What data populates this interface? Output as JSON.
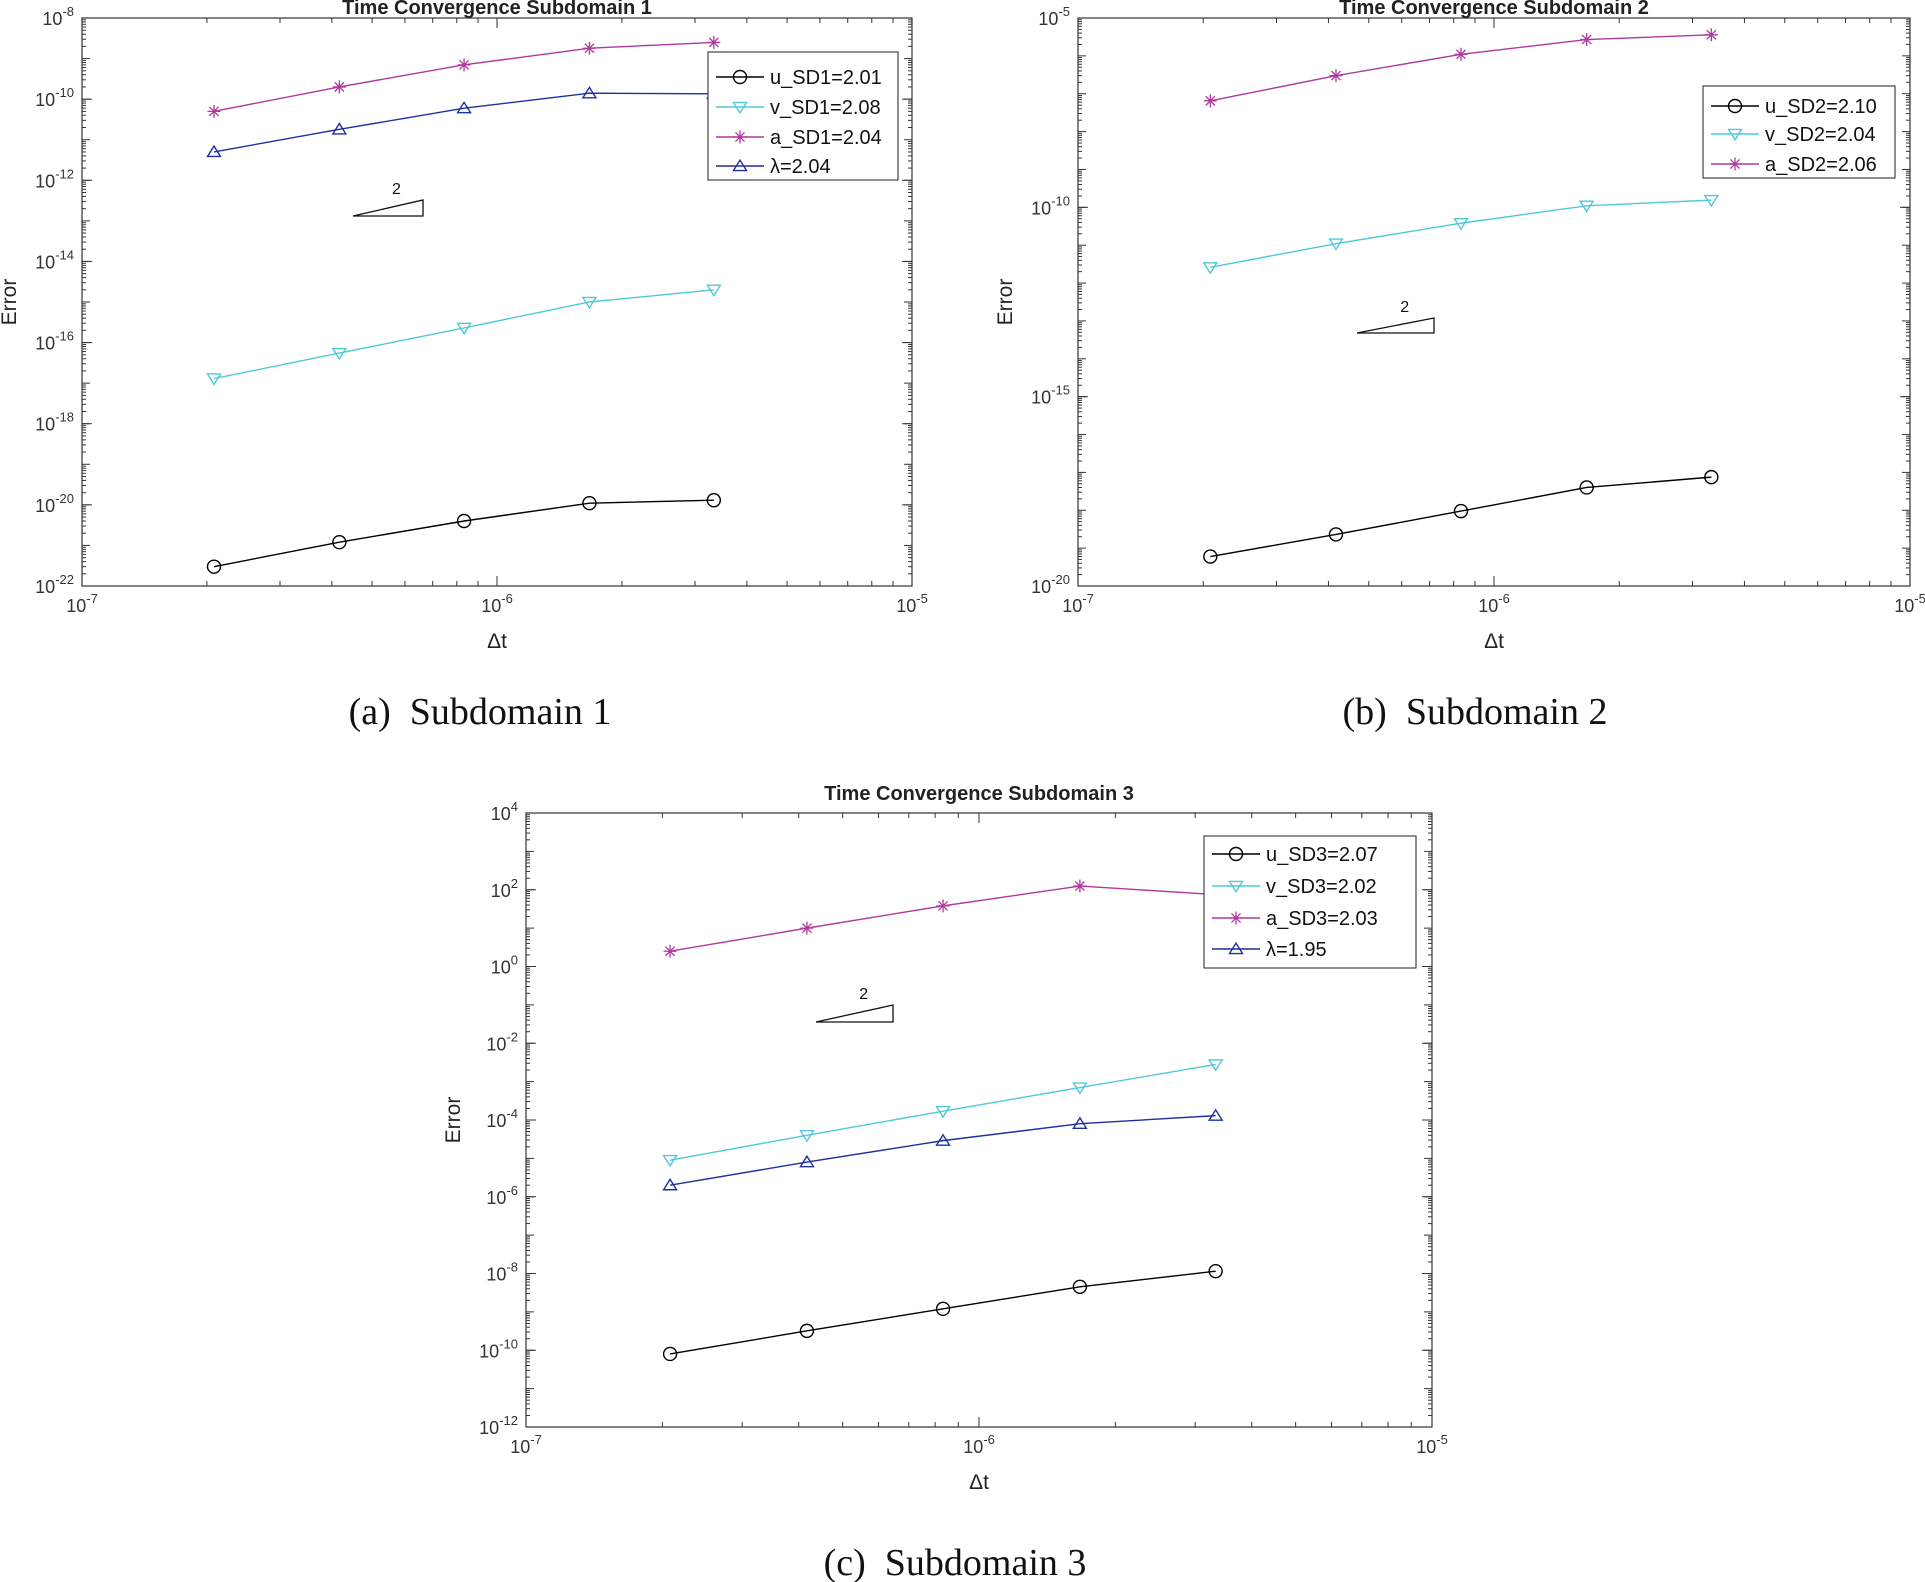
{
  "chart_data": [
    {
      "id": "sd1",
      "type": "line",
      "scale": "loglog",
      "title": "Time Convergence Subdomain 1",
      "xlabel": "Δt",
      "ylabel": "Error",
      "xlim_exp": [
        -7,
        -5
      ],
      "ylim_exp": [
        -22,
        -8
      ],
      "x_ticks": [
        {
          "base": "10",
          "exp": "-7"
        },
        {
          "base": "10",
          "exp": "-6"
        },
        {
          "base": "10",
          "exp": "-5"
        }
      ],
      "y_ticks": [
        {
          "base": "10",
          "exp": "-22"
        },
        {
          "base": "10",
          "exp": "-20"
        },
        {
          "base": "10",
          "exp": "-18"
        },
        {
          "base": "10",
          "exp": "-16"
        },
        {
          "base": "10",
          "exp": "-14"
        },
        {
          "base": "10",
          "exp": "-12"
        },
        {
          "base": "10",
          "exp": "-10"
        },
        {
          "base": "10",
          "exp": "-8"
        }
      ],
      "x": [
        2.08e-07,
        4.17e-07,
        8.33e-07,
        1.67e-06,
        3.33e-06
      ],
      "series": [
        {
          "name": "u_SD1=2.01",
          "color": "#000000",
          "marker": "circle",
          "values": [
            3e-22,
            1.2e-21,
            4e-21,
            1.1e-20,
            1.3e-20
          ]
        },
        {
          "name": "v_SD1=2.08",
          "color": "#4ec9d8",
          "marker": "triangle-down",
          "values": [
            1.3e-17,
            5.5e-17,
            2.3e-16,
            1e-15,
            2e-15
          ]
        },
        {
          "name": "a_SD1=2.04",
          "color": "#b0399f",
          "marker": "asterisk",
          "values": [
            5e-11,
            2e-10,
            7e-10,
            1.8e-09,
            2.5e-09
          ]
        },
        {
          "name": "λ=2.04",
          "color": "#1f2f9e",
          "marker": "triangle-up",
          "values": [
            5e-12,
            1.8e-11,
            6e-11,
            1.4e-10,
            1.35e-10
          ]
        }
      ],
      "slope_label": "2",
      "caption": "(a) Subdomain 1"
    },
    {
      "id": "sd2",
      "type": "line",
      "scale": "loglog",
      "title": "Time Convergence Subdomain 2",
      "xlabel": "Δt",
      "ylabel": "Error",
      "xlim_exp": [
        -7,
        -5
      ],
      "ylim_exp": [
        -20,
        -5
      ],
      "x_ticks": [
        {
          "base": "10",
          "exp": "-7"
        },
        {
          "base": "10",
          "exp": "-6"
        },
        {
          "base": "10",
          "exp": "-5"
        }
      ],
      "y_ticks": [
        {
          "base": "10",
          "exp": "-20"
        },
        {
          "base": "10",
          "exp": "-15"
        },
        {
          "base": "10",
          "exp": "-10"
        },
        {
          "base": "10",
          "exp": "-5"
        }
      ],
      "x": [
        2.08e-07,
        4.17e-07,
        8.33e-07,
        1.67e-06,
        3.33e-06
      ],
      "series": [
        {
          "name": "u_SD2=2.10",
          "color": "#000000",
          "marker": "circle",
          "values": [
            6e-20,
            2.3e-19,
            9.5e-19,
            4e-18,
            7.5e-18
          ]
        },
        {
          "name": "v_SD2=2.04",
          "color": "#4ec9d8",
          "marker": "triangle-down",
          "values": [
            2.6e-12,
            1.1e-11,
            3.8e-11,
            1.1e-10,
            1.55e-10
          ]
        },
        {
          "name": "a_SD2=2.06",
          "color": "#b0399f",
          "marker": "asterisk",
          "values": [
            6.5e-08,
            3e-07,
            1.1e-06,
            2.7e-06,
            3.6e-06
          ]
        }
      ],
      "slope_label": "2",
      "caption": "(b) Subdomain 2"
    },
    {
      "id": "sd3",
      "type": "line",
      "scale": "loglog",
      "title": "Time Convergence Subdomain 3",
      "xlabel": "Δt",
      "ylabel": "Error",
      "xlim_exp": [
        -7,
        -5
      ],
      "ylim_exp": [
        -12,
        4
      ],
      "x_ticks": [
        {
          "base": "10",
          "exp": "-7"
        },
        {
          "base": "10",
          "exp": "-6"
        },
        {
          "base": "10",
          "exp": "-5"
        }
      ],
      "y_ticks": [
        {
          "base": "10",
          "exp": "-12"
        },
        {
          "base": "10",
          "exp": "-10"
        },
        {
          "base": "10",
          "exp": "-8"
        },
        {
          "base": "10",
          "exp": "-6"
        },
        {
          "base": "10",
          "exp": "-4"
        },
        {
          "base": "10",
          "exp": "-2"
        },
        {
          "base": "10",
          "exp": "0"
        },
        {
          "base": "10",
          "exp": "2"
        },
        {
          "base": "10",
          "exp": "4"
        }
      ],
      "x": [
        2.08e-07,
        4.17e-07,
        8.33e-07,
        1.67e-06,
        3.33e-06
      ],
      "series": [
        {
          "name": "u_SD3=2.07",
          "color": "#000000",
          "marker": "circle",
          "values": [
            8e-11,
            3.2e-10,
            1.2e-09,
            4.5e-09,
            1.15e-08
          ]
        },
        {
          "name": "v_SD3=2.02",
          "color": "#4ec9d8",
          "marker": "triangle-down",
          "values": [
            9e-06,
            4e-05,
            0.00017,
            0.0007,
            0.0028
          ]
        },
        {
          "name": "a_SD3=2.03",
          "color": "#b0399f",
          "marker": "asterisk",
          "values": [
            2.5,
            10,
            38,
            125,
            75
          ]
        },
        {
          "name": "λ=1.95",
          "color": "#1f2f9e",
          "marker": "triangle-up",
          "values": [
            2e-06,
            8e-06,
            2.9e-05,
            8e-05,
            0.00013
          ]
        }
      ],
      "slope_label": "2",
      "caption": "(c) Subdomain 3"
    }
  ]
}
